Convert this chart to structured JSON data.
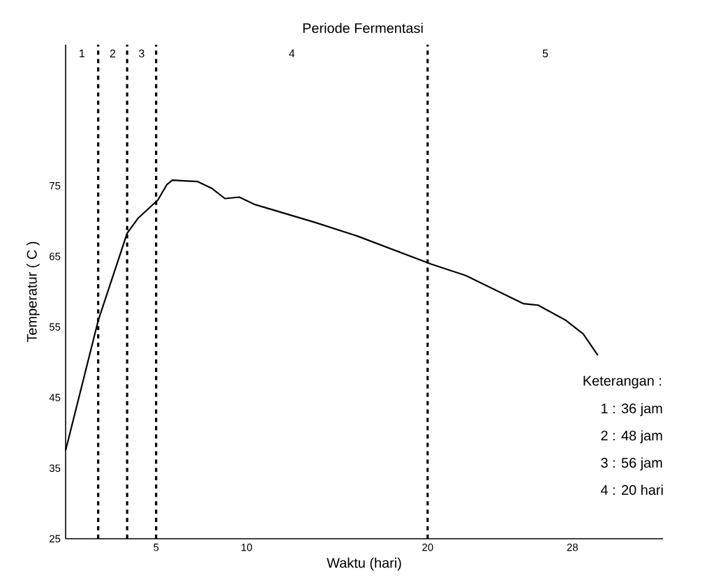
{
  "chart_data": {
    "type": "line",
    "title": "Periode Fermentasi",
    "xlabel": "Waktu (hari)",
    "ylabel": "Temperatur ( C )",
    "x": [
      0,
      1.8,
      3.4,
      4.0,
      5.1,
      5.6,
      5.9,
      7.3,
      8.1,
      8.8,
      9.6,
      10.4,
      13.8,
      16.1,
      20.2,
      22.1,
      25.3,
      26.1,
      27.6,
      28.6,
      29.4
    ],
    "series": [
      {
        "color": "#000000",
        "values": [
          37.5,
          55.9,
          68.3,
          70.4,
          73.0,
          75.2,
          75.8,
          75.6,
          74.6,
          73.2,
          73.4,
          72.4,
          69.8,
          67.9,
          63.9,
          62.3,
          58.3,
          58.1,
          56.0,
          54.0,
          51.0
        ]
      }
    ],
    "xlim": [
      0,
      33
    ],
    "ylim": [
      25,
      95
    ],
    "xticks": [
      5,
      10,
      20,
      28
    ],
    "yticks": [
      25,
      35,
      45,
      55,
      65,
      75
    ],
    "line_style": "solid",
    "marker": "none",
    "grid": false,
    "ref_lines": [
      {
        "axis": "x",
        "value": 1.8,
        "color": "#000000",
        "line_style": "dashed"
      },
      {
        "axis": "x",
        "value": 3.4,
        "color": "#000000",
        "line_style": "dashed"
      },
      {
        "axis": "x",
        "value": 5,
        "color": "#000000",
        "line_style": "dashed"
      },
      {
        "axis": "x",
        "value": 20,
        "color": "#000000",
        "line_style": "dashed"
      }
    ],
    "annotations": [
      "1",
      "2",
      "3",
      "4",
      "5",
      "Keterangan  :",
      "1 : 36 jam",
      "2 : 48 jam",
      "3 : 56 jam",
      "4 : 20 hari"
    ]
  }
}
